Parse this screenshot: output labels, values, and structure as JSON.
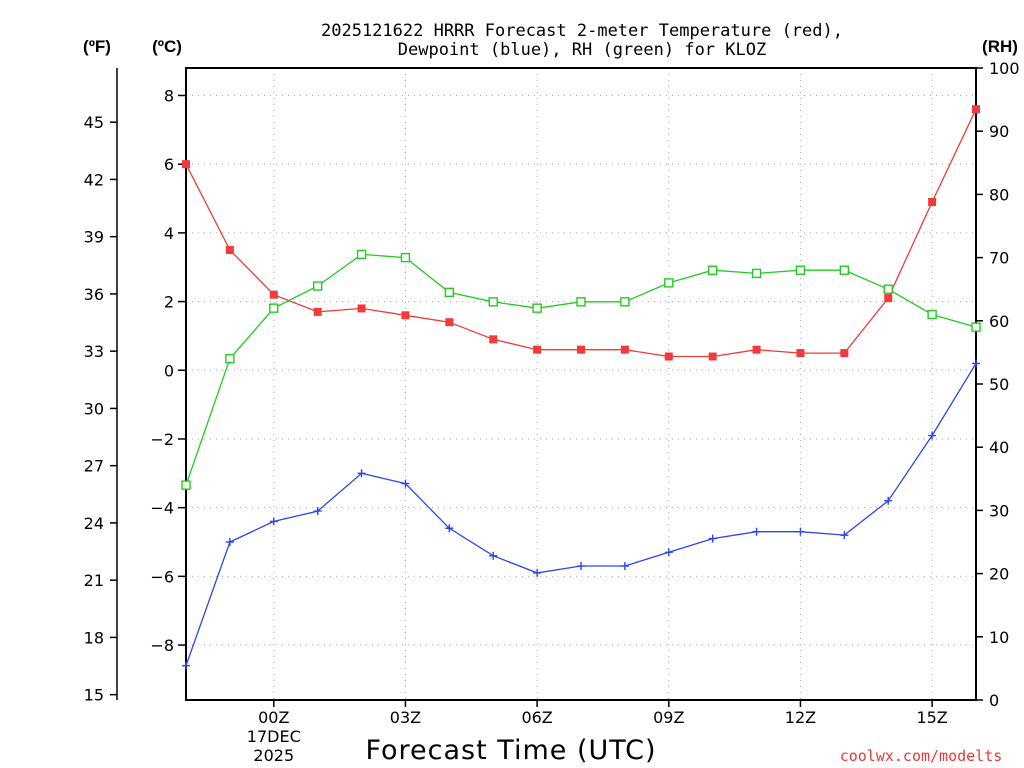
{
  "chart_data": {
    "type": "line",
    "title_line1": "2025121622 HRRR Forecast 2-meter Temperature (red),",
    "title_line2": "Dewpoint (blue), RH (green) for KLOZ",
    "xlabel": "Forecast Time (UTC)",
    "credit": "coolwx.com/modelts",
    "x": [
      0,
      1,
      2,
      3,
      4,
      5,
      6,
      7,
      8,
      9,
      10,
      11,
      12,
      13,
      14,
      15,
      16,
      17,
      18
    ],
    "x_range": [
      0,
      18
    ],
    "x_ticks": [
      {
        "x": 2,
        "label": "00Z",
        "sub1": "17DEC",
        "sub2": "2025"
      },
      {
        "x": 5,
        "label": "03Z"
      },
      {
        "x": 8,
        "label": "06Z"
      },
      {
        "x": 11,
        "label": "09Z"
      },
      {
        "x": 14,
        "label": "12Z"
      },
      {
        "x": 17,
        "label": "15Z"
      }
    ],
    "y_left_celsius": {
      "unit": "(ºC)",
      "range": [
        -9.6,
        8.8
      ],
      "ticks": [
        -8,
        -6,
        -4,
        -2,
        0,
        2,
        4,
        6,
        8
      ]
    },
    "y_left_fahrenheit": {
      "unit": "(ºF)",
      "ticks": [
        15,
        18,
        21,
        24,
        27,
        30,
        33,
        36,
        39,
        42,
        45
      ]
    },
    "y_right_rh": {
      "unit": "(RH)",
      "range": [
        0,
        100
      ],
      "ticks": [
        0,
        10,
        20,
        30,
        40,
        50,
        60,
        70,
        80,
        90,
        100
      ]
    },
    "series": [
      {
        "name": "Temperature",
        "axis": "celsius",
        "color": "#f23a3a",
        "marker": "filled-square",
        "values": [
          6.0,
          3.5,
          2.2,
          1.7,
          1.8,
          1.6,
          1.4,
          0.9,
          0.6,
          0.6,
          0.6,
          0.4,
          0.4,
          0.6,
          0.5,
          0.5,
          2.1,
          4.9,
          7.6
        ]
      },
      {
        "name": "Dewpoint",
        "axis": "celsius",
        "color": "#2a46f0",
        "marker": "plus",
        "values": [
          -8.6,
          -5.0,
          -4.4,
          -4.1,
          -3.0,
          -3.3,
          -4.6,
          -5.4,
          -5.9,
          -5.7,
          -5.7,
          -5.3,
          -4.9,
          -4.7,
          -4.7,
          -4.8,
          -3.8,
          -1.9,
          0.2
        ]
      },
      {
        "name": "RH",
        "axis": "rh",
        "color": "#22cc22",
        "marker": "open-square",
        "values": [
          34,
          54,
          62,
          65.5,
          70.5,
          70,
          64.5,
          63,
          62,
          63,
          63,
          66,
          68,
          67.5,
          68,
          68,
          65,
          61,
          59
        ]
      }
    ]
  }
}
